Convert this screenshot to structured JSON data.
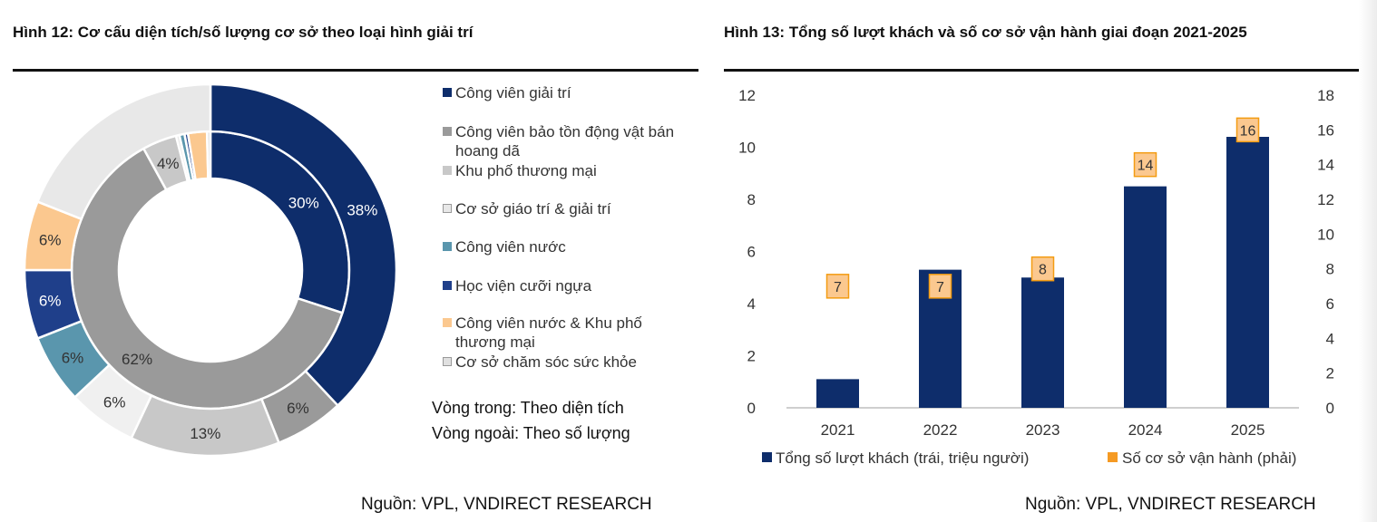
{
  "fig12": {
    "title": "Hình 12: Cơ cấu diện tích/số lượng cơ sở theo loại hình giải trí",
    "source": "Nguồn: VPL, VNDIRECT RESEARCH",
    "note_inner": "Vòng trong: Theo diện tích",
    "note_outer": "Vòng ngoài: Theo số lượng",
    "legend": [
      {
        "label": "Công viên giải trí",
        "color": "#0e2d6b"
      },
      {
        "label": "Công viên bảo tồn động vật bán hoang dã",
        "color": "#9a9a9a"
      },
      {
        "label": "Khu phố thương mại",
        "color": "#c8c8c8"
      },
      {
        "label": "Cơ sở giáo trí & giải trí",
        "color": "#e8e8e8"
      },
      {
        "label": "Công viên nước",
        "color": "#5a96ad"
      },
      {
        "label": "Học viện cưỡi ngựa",
        "color": "#1f3f8a"
      },
      {
        "label": "Công viên nước & Khu phố thương mại",
        "color": "#fbc88f"
      },
      {
        "label": "Cơ sở chăm sóc sức khỏe",
        "color": "#e0e0e0"
      }
    ]
  },
  "fig13": {
    "title": "Hình 13: Tổng số lượt khách và số cơ sở vận hành giai đoạn 2021-2025",
    "source": "Nguồn: VPL, VNDIRECT RESEARCH",
    "legend_bar": "Tổng số lượt khách (trái, triệu người)",
    "legend_marker": "Số cơ sở vận hành (phải)"
  },
  "chart_data": [
    {
      "type": "pie",
      "title": "Hình 12: Cơ cấu diện tích/số lượng cơ sở theo loại hình giải trí",
      "rings": [
        {
          "name": "Vòng trong: Theo diện tích",
          "slices": [
            {
              "category": "Công viên giải trí",
              "value": 30,
              "label": "30%",
              "color": "#0e2d6b"
            },
            {
              "category": "Công viên bảo tồn động vật bán hoang dã",
              "value": 62,
              "label": "62%",
              "color": "#9a9a9a"
            },
            {
              "category": "Khu phố thương mại",
              "value": 4,
              "label": "4%",
              "color": "#c8c8c8"
            },
            {
              "category": "Cơ sở giáo trí & giải trí",
              "value": 0.4,
              "label": "",
              "color": "#e8e8e8"
            },
            {
              "category": "Công viên nước",
              "value": 0.6,
              "label": "",
              "color": "#5a96ad"
            },
            {
              "category": "Học viện cưỡi ngựa",
              "value": 0.4,
              "label": "",
              "color": "#1f3f8a"
            },
            {
              "category": "Công viên nước & Khu phố thương mại",
              "value": 2.2,
              "label": "",
              "color": "#fbc88f"
            },
            {
              "category": "Cơ sở chăm sóc sức khỏe",
              "value": 0.4,
              "label": "",
              "color": "#e0e0e0"
            }
          ]
        },
        {
          "name": "Vòng ngoài: Theo số lượng",
          "slices": [
            {
              "category": "Công viên giải trí",
              "value": 38,
              "label": "38%",
              "color": "#0e2d6b"
            },
            {
              "category": "Công viên bảo tồn động vật bán hoang dã",
              "value": 6,
              "label": "6%",
              "color": "#9a9a9a"
            },
            {
              "category": "Khu phố thương mại",
              "value": 13,
              "label": "13%",
              "color": "#c8c8c8"
            },
            {
              "category": "Cơ sở giáo trí & giải trí",
              "value": 6,
              "label": "6%",
              "color": "#f0f0f0"
            },
            {
              "category": "Công viên nước",
              "value": 6,
              "label": "6%",
              "color": "#5a96ad"
            },
            {
              "category": "Học viện cưỡi ngựa",
              "value": 6,
              "label": "6%",
              "color": "#1f3f8a"
            },
            {
              "category": "Công viên nước & Khu phố thương mại",
              "value": 6,
              "label": "6%",
              "color": "#fbc88f"
            },
            {
              "category": "Cơ sở chăm sóc sức khỏe",
              "value": 19,
              "label": "",
              "color": "#e8e8e8"
            }
          ]
        }
      ]
    },
    {
      "type": "bar",
      "title": "Hình 13: Tổng số lượt khách và số cơ sở vận hành giai đoạn 2021-2025",
      "categories": [
        "2021",
        "2022",
        "2023",
        "2024",
        "2025"
      ],
      "series": [
        {
          "name": "Tổng số lượt khách (trái, triệu người)",
          "axis": "left",
          "values": [
            1.1,
            5.3,
            5.0,
            8.5,
            10.4
          ],
          "color": "#0e2d6b"
        },
        {
          "name": "Số cơ sở vận hành (phải)",
          "axis": "right",
          "values": [
            7,
            7,
            8,
            14,
            16
          ],
          "color": "#fbc88f"
        }
      ],
      "ylim": [
        0,
        12
      ],
      "yticks": [
        0,
        2,
        4,
        6,
        8,
        10,
        12
      ],
      "y2lim": [
        0,
        18
      ],
      "y2ticks": [
        0,
        2,
        4,
        6,
        8,
        10,
        12,
        14,
        16,
        18
      ],
      "grid": false,
      "legend": "bottom"
    }
  ]
}
